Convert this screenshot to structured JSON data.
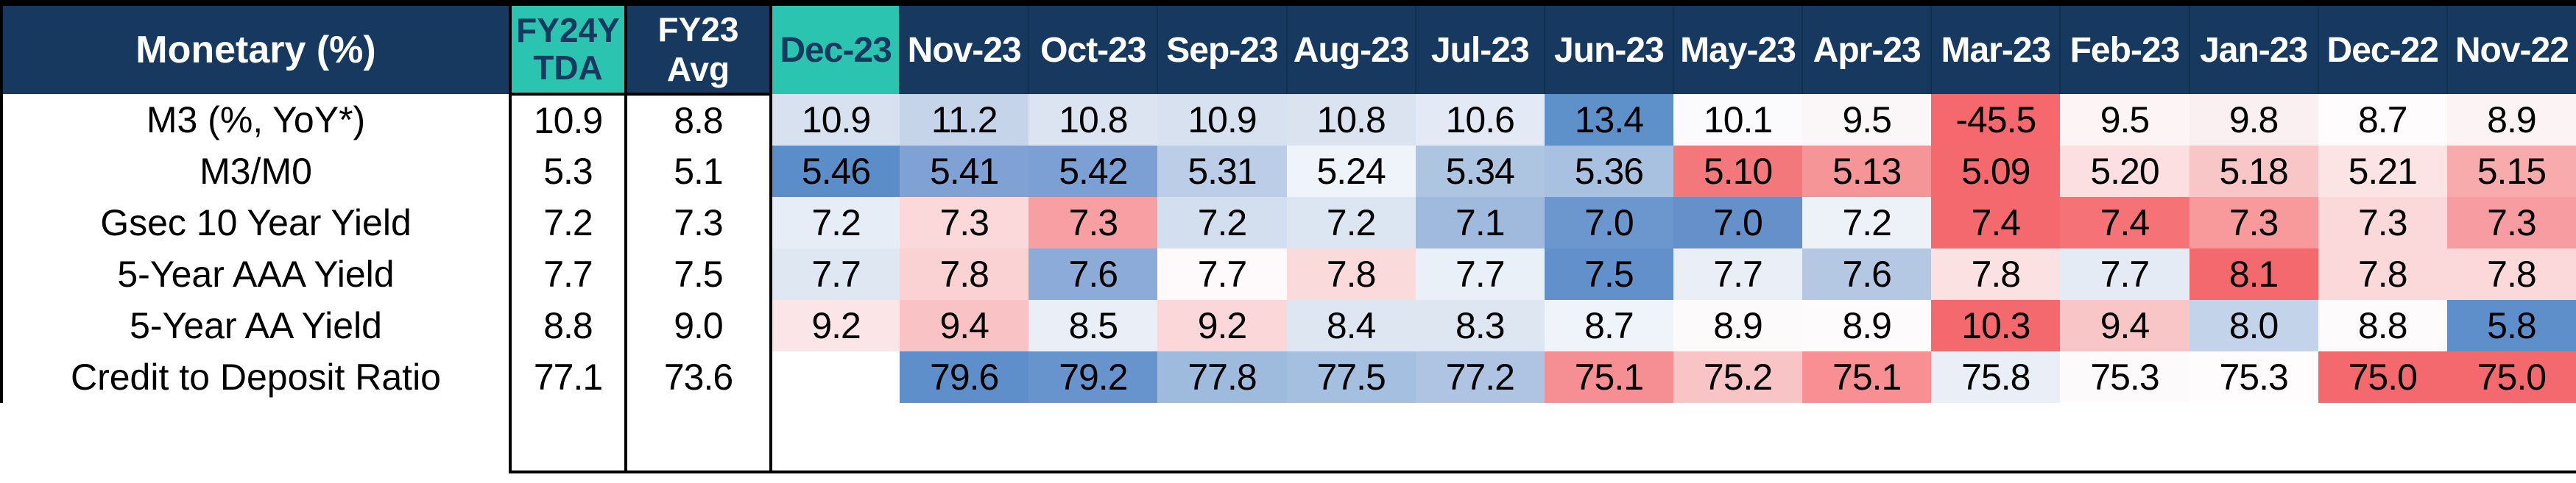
{
  "title": "Monetary (%)",
  "chart_data": {
    "type": "heatmap",
    "title": "Monetary (%)",
    "columns": [
      "FY24YTDA",
      "FY23 Avg",
      "Dec-23",
      "Nov-23",
      "Oct-23",
      "Sep-23",
      "Aug-23",
      "Jul-23",
      "Jun-23",
      "May-23",
      "Apr-23",
      "Mar-23",
      "Feb-23",
      "Jan-23",
      "Dec-22",
      "Nov-22"
    ],
    "highlighted_column_indices": [
      0,
      2
    ],
    "rows": [
      {
        "label": "M3 (%, YoY*)",
        "values": [
          "10.9",
          "8.8",
          "10.9",
          "11.2",
          "10.8",
          "10.9",
          "10.8",
          "10.6",
          "13.4",
          "10.1",
          "9.5",
          "-45.5",
          "9.5",
          "9.8",
          "8.7",
          "8.9"
        ],
        "cell_colors": [
          "#FFFFFF",
          "#FFFFFF",
          "#D7E1F0",
          "#C5D4E9",
          "#DCE4F2",
          "#D8E1F0",
          "#DBE3F1",
          "#E3EAF5",
          "#5E90CA",
          "#FBFAFC",
          "#FBF7F9",
          "#F5696E",
          "#FDF4F5",
          "#FAEFF1",
          "#FEFCFD",
          "#FCF3F4"
        ]
      },
      {
        "label": "M3/M0",
        "values": [
          "5.3",
          "5.1",
          "5.46",
          "5.41",
          "5.42",
          "5.31",
          "5.24",
          "5.34",
          "5.36",
          "5.10",
          "5.13",
          "5.09",
          "5.20",
          "5.18",
          "5.21",
          "5.15"
        ],
        "cell_colors": [
          "#FFFFFF",
          "#FFFFFF",
          "#5B8DC9",
          "#7FA1D4",
          "#7CA0D3",
          "#BCCEE7",
          "#EFF3FA",
          "#AEC5E2",
          "#A9C1E0",
          "#F3787C",
          "#F69597",
          "#F4696D",
          "#FBDFE1",
          "#F9C6C8",
          "#FCE4E5",
          "#F8ABAD"
        ]
      },
      {
        "label": "Gsec 10 Year Yield",
        "values": [
          "7.2",
          "7.3",
          "7.2",
          "7.3",
          "7.3",
          "7.2",
          "7.2",
          "7.1",
          "7.0",
          "7.0",
          "7.2",
          "7.4",
          "7.4",
          "7.3",
          "7.3",
          "7.3"
        ],
        "cell_colors": [
          "#FFFFFF",
          "#FFFFFF",
          "#E7EDF6",
          "#FBD8DA",
          "#F79FA2",
          "#D3DEEE",
          "#DCE5F2",
          "#9FBADD",
          "#6B97CE",
          "#6590CA",
          "#EDF1F8",
          "#F4696D",
          "#F57377",
          "#F8999C",
          "#FBD9DA",
          "#F79CA0"
        ]
      },
      {
        "label": "5-Year AAA Yield",
        "values": [
          "7.7",
          "7.5",
          "7.7",
          "7.8",
          "7.6",
          "7.7",
          "7.8",
          "7.7",
          "7.5",
          "7.7",
          "7.6",
          "7.8",
          "7.7",
          "8.1",
          "7.8",
          "7.8"
        ],
        "cell_colors": [
          "#FFFFFF",
          "#FFFFFF",
          "#DFE7F3",
          "#FAD2D4",
          "#8CABD8",
          "#FEFAFB",
          "#FBDADC",
          "#EAF0F8",
          "#6290CB",
          "#E9EEF7",
          "#B4C8E4",
          "#FCE1E2",
          "#E4EBF5",
          "#F4696D",
          "#FBD8DA",
          "#FBD8DA"
        ]
      },
      {
        "label": "5-Year AA Yield",
        "values": [
          "8.8",
          "9.0",
          "9.2",
          "9.4",
          "8.5",
          "9.2",
          "8.4",
          "8.3",
          "8.7",
          "8.9",
          "8.9",
          "10.3",
          "9.4",
          "8.0",
          "8.8",
          "5.8"
        ],
        "cell_colors": [
          "#FFFFFF",
          "#FFFFFF",
          "#FCE5E7",
          "#F9C3C5",
          "#E9EEF7",
          "#FBD7D9",
          "#DEE6F2",
          "#DEE6F2",
          "#EFF3FA",
          "#FDFAFB",
          "#FEFBFC",
          "#F4696D",
          "#F9C6C8",
          "#C3D3E9",
          "#FEFBFC",
          "#5E8FCA"
        ]
      },
      {
        "label": "Credit to Deposit Ratio",
        "values": [
          "77.1",
          "73.6",
          "",
          "79.6",
          "79.2",
          "77.8",
          "77.5",
          "77.2",
          "75.1",
          "75.2",
          "75.1",
          "75.8",
          "75.3",
          "75.3",
          "75.0",
          "75.0"
        ],
        "cell_colors": [
          "#FFFFFF",
          "#FFFFFF",
          "#FFFFFF",
          "#5E8FCA",
          "#6794CD",
          "#9EBADD",
          "#A5BFE0",
          "#AEC4E2",
          "#F58F93",
          "#F9C4C6",
          "#F78F93",
          "#EAEFF7",
          "#FDFAFC",
          "#FEFCFD",
          "#F4696D",
          "#F4696D"
        ]
      }
    ],
    "colors": {
      "header_bg": "#17395F",
      "header_text": "#FFFFFF",
      "highlight_bg": "#2BC4B1",
      "highlight_text": "#17395F",
      "scale_high_blue": "#5E8FCA",
      "scale_mid_white": "#FFFFFF",
      "scale_low_red": "#F4696D",
      "grid_border": "#000000"
    },
    "layout": {
      "legend": "none",
      "month_columns": 14,
      "stat_columns_boxed": true
    }
  }
}
